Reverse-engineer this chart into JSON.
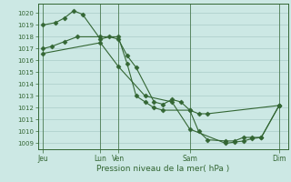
{
  "background_color": "#cce8e4",
  "grid_color": "#aaccc8",
  "line_color": "#336633",
  "xlabel": "Pression niveau de la mer( hPa )",
  "ylim": [
    1008.5,
    1020.8
  ],
  "yticks": [
    1009,
    1010,
    1011,
    1012,
    1013,
    1014,
    1015,
    1016,
    1017,
    1018,
    1019,
    1020
  ],
  "xlim": [
    0,
    14.0
  ],
  "xtick_positions": [
    0.3,
    3.5,
    4.5,
    8.5,
    13.5
  ],
  "xtick_labels": [
    "Jeu",
    "Lun",
    "Ven",
    "Sam",
    "Dim"
  ],
  "vline_positions": [
    0.3,
    3.5,
    4.5,
    8.5,
    13.5
  ],
  "line1_x": [
    0.3,
    1.0,
    1.5,
    2.0,
    2.5,
    3.5,
    4.0,
    4.5,
    5.0,
    5.5,
    6.5,
    7.0,
    7.5,
    8.0,
    8.5,
    9.0,
    9.5,
    13.5
  ],
  "line1_y": [
    1019.0,
    1019.2,
    1019.6,
    1020.2,
    1019.9,
    1017.8,
    1018.0,
    1017.8,
    1016.4,
    1015.4,
    1012.5,
    1012.3,
    1012.7,
    1012.5,
    1011.8,
    1011.5,
    1011.5,
    1012.2
  ],
  "line2_x": [
    0.3,
    0.8,
    1.5,
    2.2,
    3.5,
    4.5,
    5.0,
    5.5,
    6.0,
    6.5,
    7.0,
    8.5,
    9.0,
    9.5,
    10.5,
    11.0,
    11.5,
    12.0,
    12.5,
    13.5
  ],
  "line2_y": [
    1017.0,
    1017.2,
    1017.6,
    1018.0,
    1018.0,
    1018.0,
    1015.7,
    1013.0,
    1012.5,
    1012.0,
    1011.8,
    1011.8,
    1010.0,
    1009.3,
    1009.2,
    1009.2,
    1009.5,
    1009.5,
    1009.5,
    1012.2
  ],
  "line3_x": [
    0.3,
    3.5,
    4.5,
    6.0,
    7.5,
    8.5,
    10.5,
    11.0,
    11.5,
    12.0,
    12.5,
    13.5
  ],
  "line3_y": [
    1016.6,
    1017.5,
    1015.5,
    1013.0,
    1012.5,
    1010.2,
    1009.0,
    1009.1,
    1009.2,
    1009.4,
    1009.5,
    1012.2
  ]
}
